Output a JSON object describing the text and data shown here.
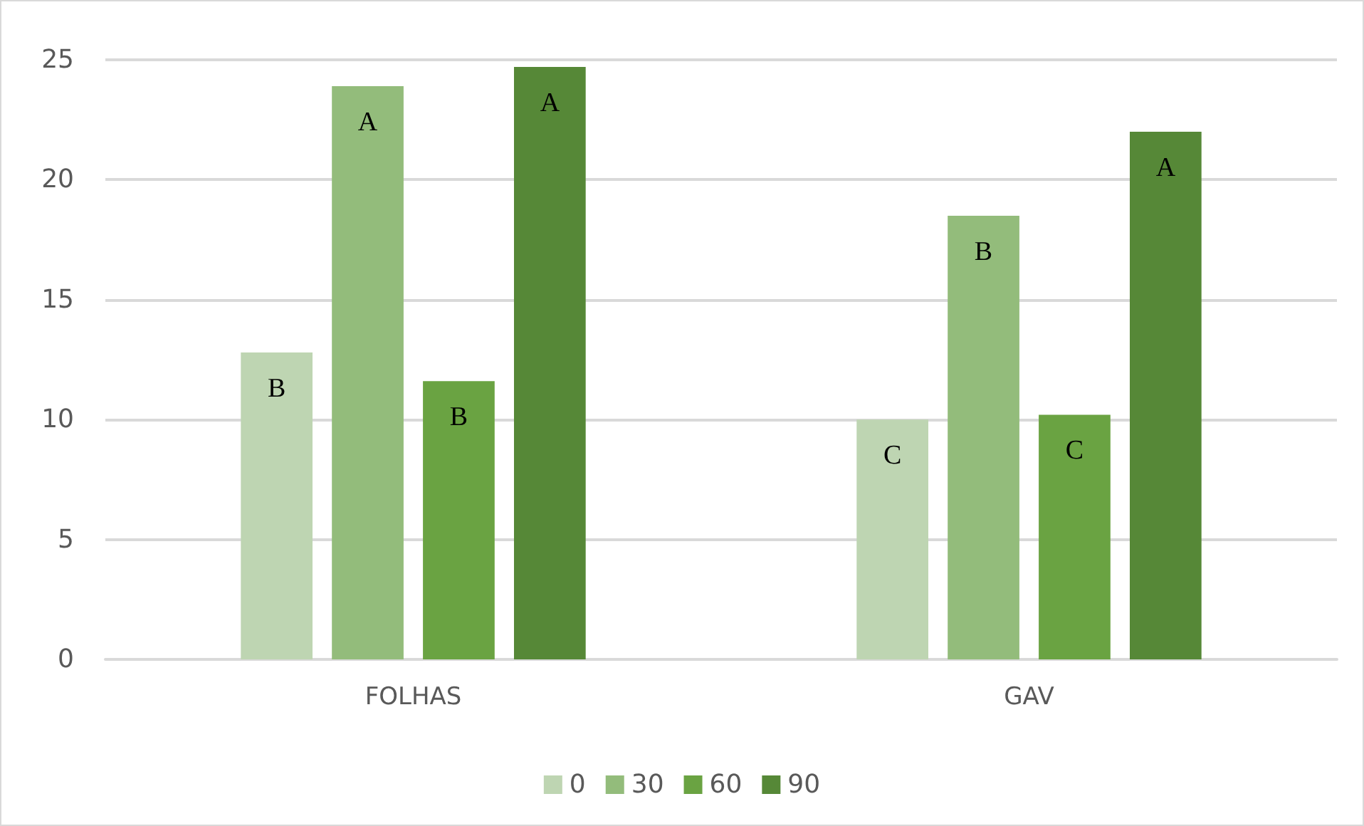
{
  "chart_data": {
    "type": "bar",
    "categories": [
      "FOLHAS",
      "GAV"
    ],
    "series": [
      {
        "name": "0",
        "color": "#bed5b2",
        "values": [
          12.8,
          10.0
        ],
        "value_labels": [
          "B",
          "C"
        ]
      },
      {
        "name": "30",
        "color": "#93bc7b",
        "values": [
          23.9,
          18.5
        ],
        "value_labels": [
          "A",
          "B"
        ]
      },
      {
        "name": "60",
        "color": "#6aa342",
        "values": [
          11.6,
          10.2
        ],
        "value_labels": [
          "B",
          "C"
        ]
      },
      {
        "name": "90",
        "color": "#568837",
        "values": [
          24.7,
          22.0
        ],
        "value_labels": [
          "A",
          "A"
        ]
      }
    ],
    "ylim": [
      0,
      25
    ],
    "yticks": [
      0,
      5,
      10,
      15,
      20,
      25
    ],
    "grid": "y",
    "legend": "bottom"
  }
}
